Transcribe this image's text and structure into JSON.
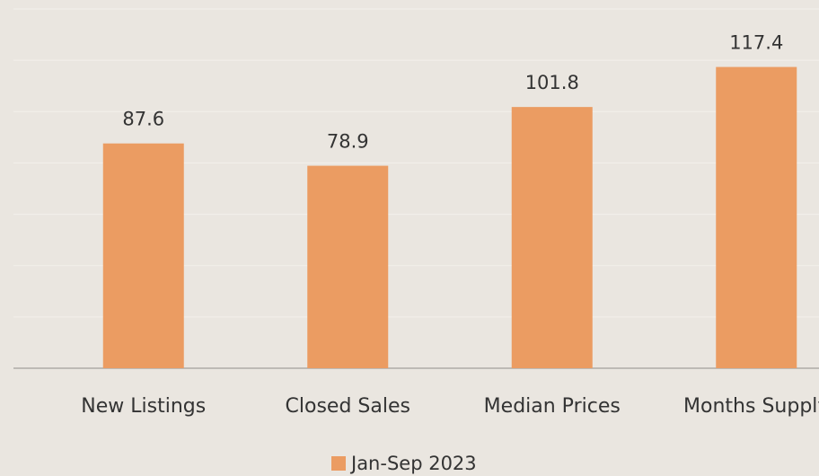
{
  "chart_data": {
    "type": "bar",
    "categories": [
      "New Listings",
      "Closed Sales",
      "Median Prices",
      "Months Supply"
    ],
    "series": [
      {
        "name": "Jan-Sep 2023",
        "color": "#eb9c62",
        "values": [
          87.6,
          78.9,
          101.8,
          117.4
        ]
      }
    ],
    "ylim": [
      0,
      140
    ],
    "yticks": [
      0,
      20,
      40,
      60,
      80,
      100,
      120,
      140
    ],
    "grid": true,
    "legend": "bottom"
  }
}
